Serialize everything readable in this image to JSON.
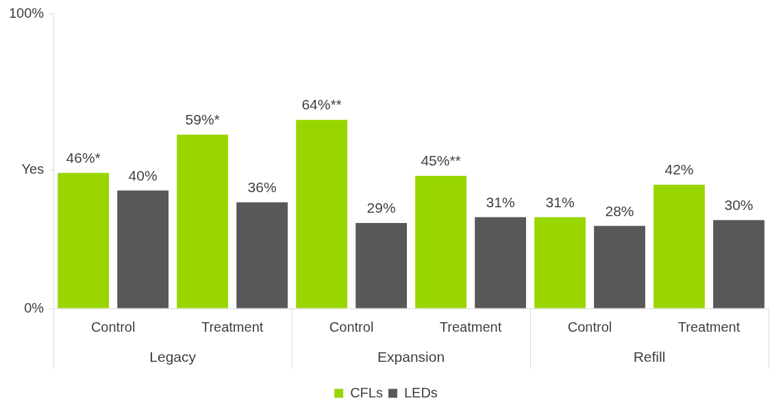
{
  "chart_data": {
    "type": "bar",
    "categories": [
      "Control",
      "Treatment",
      "Control",
      "Treatment",
      "Control",
      "Treatment"
    ],
    "annotations": [
      "Legacy",
      "Expansion",
      "Refill"
    ],
    "series": [
      {
        "name": "CFLs",
        "color": "#99d600",
        "values": [
          46,
          59,
          64,
          45,
          31,
          42
        ],
        "value_labels": [
          "46%*",
          "59%*",
          "64%**",
          "45%**",
          "31%",
          "42%"
        ]
      },
      {
        "name": "LEDs",
        "color": "#58585a",
        "values": [
          40,
          36,
          29,
          31,
          28,
          30
        ],
        "value_labels": [
          "40%",
          "36%",
          "29%",
          "31%",
          "28%",
          "30%"
        ]
      }
    ],
    "ylim": [
      0,
      100
    ],
    "yticks": [
      {
        "value": 0,
        "label": "0%"
      },
      {
        "value": 47,
        "label": "Yes"
      },
      {
        "value": 100,
        "label": "100%"
      }
    ],
    "grid": false,
    "legend": "bottom"
  }
}
